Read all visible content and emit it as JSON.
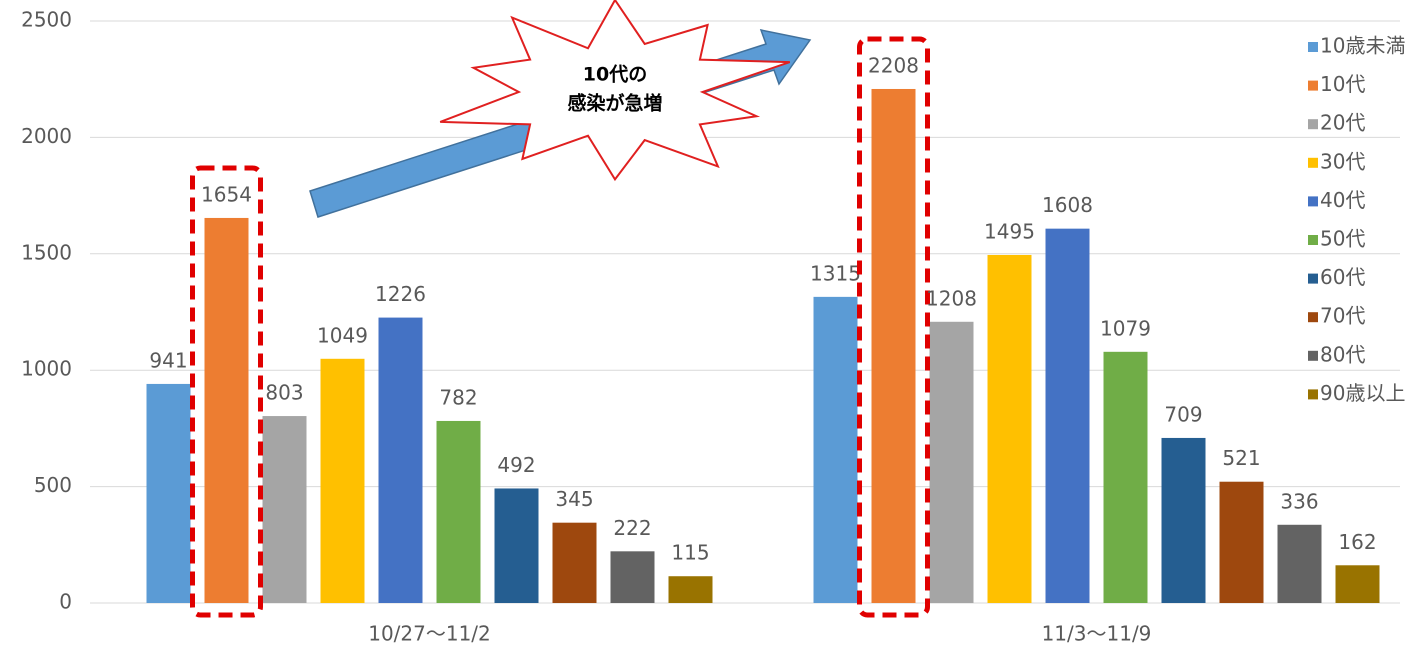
{
  "chart_data": {
    "type": "bar",
    "categories": [
      "10/27〜11/2",
      "11/3〜11/9"
    ],
    "series": [
      {
        "name": "10歳未満",
        "color": "#5b9bd5",
        "values": [
          941,
          1315
        ]
      },
      {
        "name": "10代",
        "color": "#ed7d31",
        "values": [
          1654,
          2208
        ]
      },
      {
        "name": "20代",
        "color": "#a5a5a5",
        "values": [
          803,
          1208
        ]
      },
      {
        "name": "30代",
        "color": "#ffc000",
        "values": [
          1049,
          1495
        ]
      },
      {
        "name": "40代",
        "color": "#4472c4",
        "values": [
          1226,
          1608
        ]
      },
      {
        "name": "50代",
        "color": "#70ad47",
        "values": [
          782,
          1079
        ]
      },
      {
        "name": "60代",
        "color": "#255e91",
        "values": [
          492,
          709
        ]
      },
      {
        "name": "70代",
        "color": "#9e480e",
        "values": [
          345,
          521
        ]
      },
      {
        "name": "80代",
        "color": "#636363",
        "values": [
          222,
          336
        ]
      },
      {
        "name": "90歳以上",
        "color": "#997300",
        "values": [
          115,
          162
        ]
      }
    ],
    "ylim": [
      0,
      2500
    ],
    "yticks": [
      0,
      500,
      1000,
      1500,
      2000,
      2500
    ],
    "grid": true,
    "legend": "right",
    "annotation": [
      "10代の",
      "感染が急増"
    ]
  }
}
